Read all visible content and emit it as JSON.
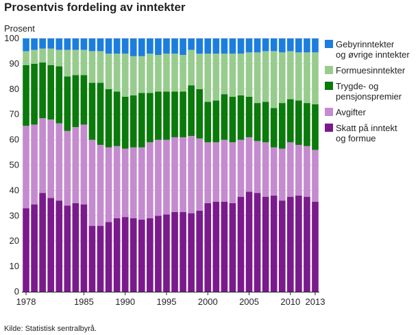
{
  "chart_data": {
    "type": "bar",
    "stacked": true,
    "title": "Prosentvis fordeling av inntekter",
    "ylabel": "Prosent",
    "xlabel": "",
    "ylim": [
      0,
      100
    ],
    "yticks": [
      0,
      10,
      20,
      30,
      40,
      50,
      60,
      70,
      80,
      90,
      100
    ],
    "categories": [
      "1978",
      "1979",
      "1980",
      "1981",
      "1982",
      "1983",
      "1984",
      "1985",
      "1986",
      "1987",
      "1988",
      "1989",
      "1990",
      "1991",
      "1992",
      "1993",
      "1994",
      "1995",
      "1996",
      "1997",
      "1998",
      "1999",
      "2000",
      "2001",
      "2002",
      "2003",
      "2004",
      "2005",
      "2006",
      "2007",
      "2008",
      "2009",
      "2010",
      "2011",
      "2012",
      "2013"
    ],
    "xtick_labels": [
      "1978",
      "1985",
      "1990",
      "1995",
      "2000",
      "2005",
      "2010",
      "2013"
    ],
    "series": [
      {
        "name": "Skatt på inntekt og formue",
        "legend_lines": [
          "Skatt på inntekt",
          "og formue"
        ],
        "color": "#7a1a8c",
        "values": [
          33,
          34.5,
          39,
          37,
          36,
          34,
          35,
          34.5,
          26,
          26,
          27.5,
          29,
          29.5,
          29,
          28.5,
          29,
          30,
          30.5,
          31.5,
          31.5,
          31,
          32,
          35,
          35.5,
          35.5,
          35,
          37.5,
          39.5,
          39,
          37.5,
          38,
          36,
          37.5,
          38,
          37.5,
          35.5
        ]
      },
      {
        "name": "Avgifter",
        "legend_lines": [
          "Avgifter"
        ],
        "color": "#c48bcf",
        "values": [
          32.5,
          31.5,
          29.5,
          31,
          30.5,
          29.5,
          30,
          31.5,
          34,
          32,
          29.5,
          28.5,
          27,
          28,
          28.5,
          30,
          30,
          29.5,
          29.5,
          29.5,
          30.5,
          28.5,
          24,
          23.5,
          24.5,
          24,
          22.5,
          21.5,
          20.5,
          21.5,
          19,
          20.5,
          21.5,
          20,
          20,
          20.5
        ]
      },
      {
        "name": "Trygde- og pensjonspremier",
        "legend_lines": [
          "Trygde- og",
          "pensjonspremier"
        ],
        "color": "#0a7a0a",
        "values": [
          24,
          24,
          22,
          21.5,
          22.5,
          21.5,
          20.5,
          19.5,
          22.5,
          24.5,
          23,
          21.5,
          20.5,
          20.5,
          21.5,
          19.5,
          19,
          19,
          18,
          18,
          20,
          19.5,
          16,
          16.5,
          18,
          18,
          17.5,
          16,
          15,
          16,
          15.5,
          18,
          17,
          17.5,
          17,
          18
        ]
      },
      {
        "name": "Formuesinntekter",
        "legend_lines": [
          "Formuesinntekter"
        ],
        "color": "#98cc8e",
        "values": [
          5.5,
          5.5,
          5.5,
          6.5,
          6.5,
          10.5,
          10,
          10,
          12.5,
          12.5,
          14,
          15,
          17,
          15.5,
          14.5,
          15.5,
          14.5,
          15,
          15,
          14.5,
          14,
          14,
          19,
          18.5,
          16,
          17,
          16.5,
          17.5,
          20,
          20,
          22.5,
          20,
          19,
          19,
          20,
          20.5
        ]
      },
      {
        "name": "Gebyrinntekter og øvrige inntekter",
        "legend_lines": [
          "Gebyrinntekter",
          "og øvrige inntekter"
        ],
        "color": "#1b7ede",
        "values": [
          5,
          4.5,
          4,
          4,
          4.5,
          4.5,
          4.5,
          4.5,
          5,
          5,
          6,
          6,
          6,
          7,
          7,
          6,
          6.5,
          6,
          6,
          6.5,
          4.5,
          6,
          6,
          6,
          6,
          6,
          6,
          5.5,
          5.5,
          5,
          5,
          5.5,
          5,
          5.5,
          5.5,
          5.5
        ]
      }
    ],
    "legend_position": "right",
    "source": "Kilde: Statistisk sentralbyrå."
  }
}
